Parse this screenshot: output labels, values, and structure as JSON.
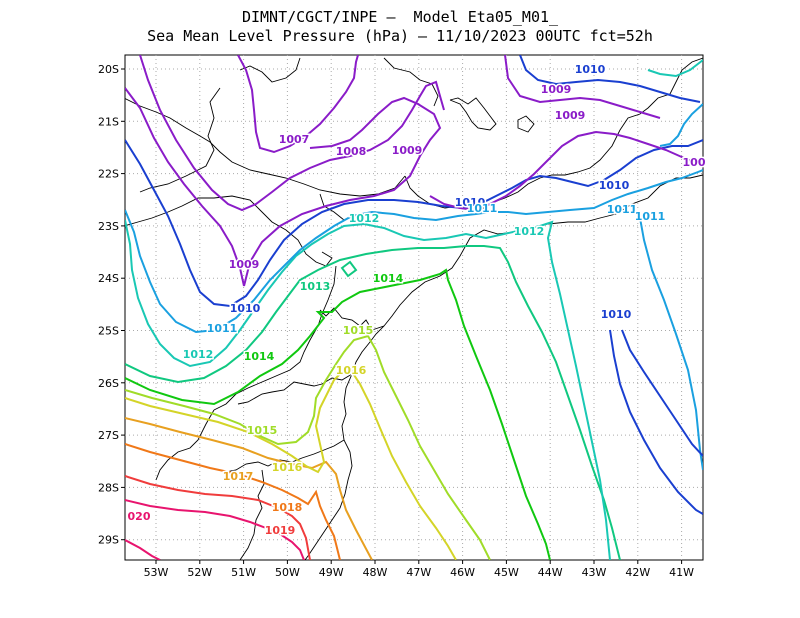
{
  "title_line1": "DIMNT/CGCT/INPE –  Model Eta05_M01_",
  "title_line2": "Sea Mean Level Pressure (hPa) – 11/10/2023 00UTC fct=52h",
  "lat_labels": [
    "20S",
    "21S",
    "22S",
    "23S",
    "24S",
    "25S",
    "26S",
    "27S",
    "28S",
    "29S"
  ],
  "lon_labels": [
    "53W",
    "52W",
    "51W",
    "50W",
    "49W",
    "48W",
    "47W",
    "46W",
    "45W",
    "44W",
    "43W",
    "42W",
    "41W"
  ],
  "contour_labels": [
    {
      "text": "1010",
      "color": "#1a3fd0"
    },
    {
      "text": "1009",
      "color": "#8a1cc8"
    },
    {
      "text": "1009",
      "color": "#8a1cc8"
    },
    {
      "text": "1007",
      "color": "#8a1cc8"
    },
    {
      "text": "1008",
      "color": "#8a1cc8"
    },
    {
      "text": "1009",
      "color": "#8a1cc8"
    },
    {
      "text": "100",
      "color": "#8a1cc8"
    },
    {
      "text": "1010",
      "color": "#1a3fd0"
    },
    {
      "text": "1010",
      "color": "#1a3fd0"
    },
    {
      "text": "1011",
      "color": "#1aa0e0"
    },
    {
      "text": "1011",
      "color": "#1aa0e0"
    },
    {
      "text": "1011",
      "color": "#1aa0e0"
    },
    {
      "text": "1012",
      "color": "#19c8b4"
    },
    {
      "text": "1012",
      "color": "#19c8b4"
    },
    {
      "text": "1009",
      "color": "#8a1cc8"
    },
    {
      "text": "1014",
      "color": "#10c810"
    },
    {
      "text": "1013",
      "color": "#10c880"
    },
    {
      "text": "1010",
      "color": "#1a3fd0"
    },
    {
      "text": "1011",
      "color": "#1aa0e0"
    },
    {
      "text": "1010",
      "color": "#1a3fd0"
    },
    {
      "text": "1015",
      "color": "#a0dc28"
    },
    {
      "text": "1012",
      "color": "#19c8b4"
    },
    {
      "text": "1014",
      "color": "#10c810"
    },
    {
      "text": "1016",
      "color": "#d4d428"
    },
    {
      "text": "1015",
      "color": "#a0dc28"
    },
    {
      "text": "1016",
      "color": "#d4d428"
    },
    {
      "text": "1017",
      "color": "#e8a020"
    },
    {
      "text": "1018",
      "color": "#f07818"
    },
    {
      "text": "020",
      "color": "#e8146e"
    },
    {
      "text": "1019",
      "color": "#f03c3c"
    }
  ],
  "colors": {
    "p1007": "#8a1cc8",
    "p1008": "#8a1cc8",
    "p1009": "#8a1cc8",
    "p1010": "#1a3fd0",
    "p1011": "#1aa0e0",
    "p1012": "#19c8b4",
    "p1013": "#10c880",
    "p1014": "#10c810",
    "p1015": "#a0dc28",
    "p1016": "#d4d428",
    "p1017": "#e8a020",
    "p1018": "#f07818",
    "p1019": "#f03c3c",
    "p1020": "#e8146e",
    "coast": "#000000",
    "grid": "#aaaaaa"
  }
}
